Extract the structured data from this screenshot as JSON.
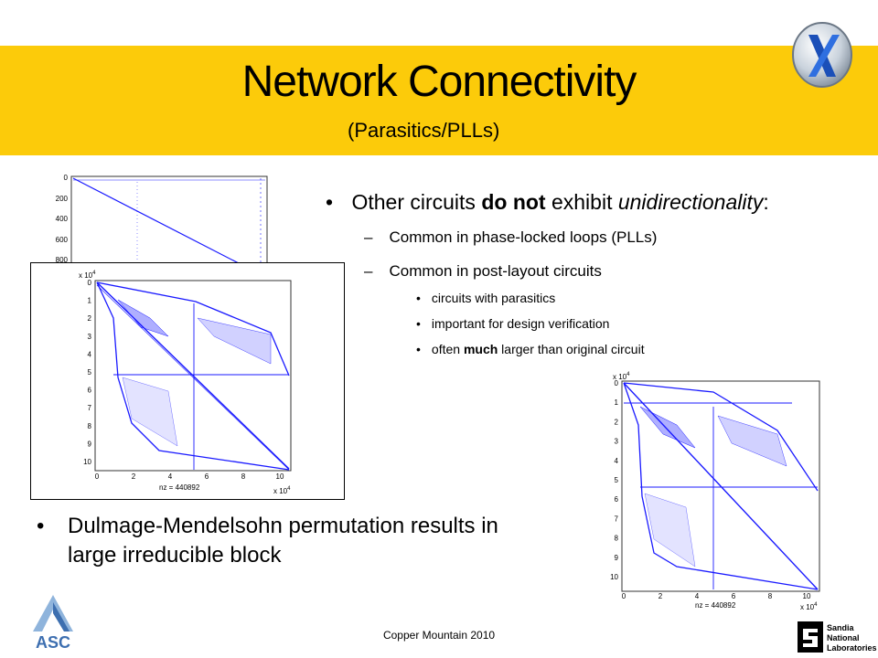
{
  "slide": {
    "title": "Network Connectivity",
    "subtitle": "(Parasitics/PLLs)",
    "bullet_main": {
      "pre": "Other circuits ",
      "bold": "do not",
      "mid": " exhibit ",
      "italic": "unidirectionality",
      "post": ":"
    },
    "sub_bullets": [
      "Common in phase-locked loops (PLLs)",
      "Common in post-layout circuits"
    ],
    "subsub_bullets": [
      "circuits with parasitics",
      "important for design verification"
    ],
    "subsub_last": {
      "pre": "often ",
      "bold": "much",
      "post": " larger than original circuit"
    },
    "bottom_bullet": "Dulmage-Mendelsohn permutation results in large irreducible block",
    "footer": "Copper Mountain 2010",
    "logos": {
      "asc_text": "ASC",
      "sandia_text": [
        "Sandia",
        "National",
        "Laboratories"
      ]
    },
    "colors": {
      "band": "#FCCB0A",
      "plot": "#1a1aff"
    }
  },
  "plots": {
    "back_ticks": [
      "0",
      "200",
      "400",
      "600",
      "800"
    ],
    "main_yticks": [
      "0",
      "1",
      "2",
      "3",
      "4",
      "5",
      "6",
      "7",
      "8",
      "9",
      "10"
    ],
    "main_xticks": [
      "0",
      "2",
      "4",
      "6",
      "8",
      "10"
    ],
    "exp_label": "x 10",
    "exp": "4",
    "nz_label": "nz = 440892"
  }
}
